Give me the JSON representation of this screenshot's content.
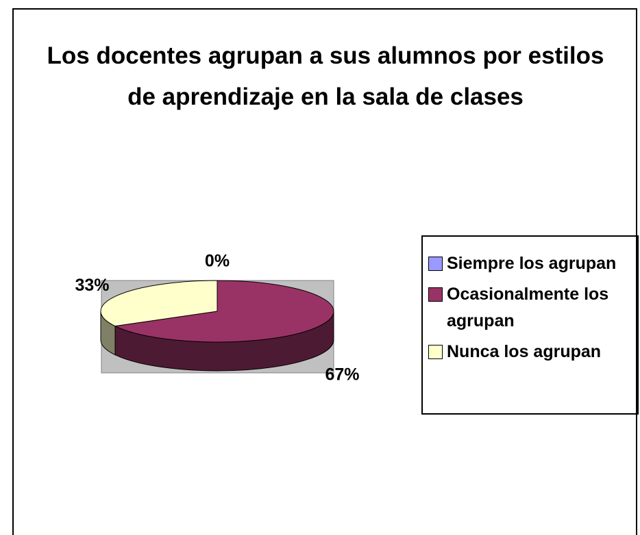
{
  "chart_data": {
    "type": "pie3d",
    "title": "Los docentes agrupan a sus alumnos por estilos de aprendizaje en la sala de clases",
    "categories": [
      "Siempre los agrupan",
      "Ocasionalmente los agrupan",
      "Nunca los agrupan"
    ],
    "values": [
      0,
      67,
      33
    ],
    "value_labels": [
      "0%",
      "67%",
      "33%"
    ],
    "colors": [
      "#9999ff",
      "#993366",
      "#ffffcc"
    ],
    "legend": "right"
  }
}
